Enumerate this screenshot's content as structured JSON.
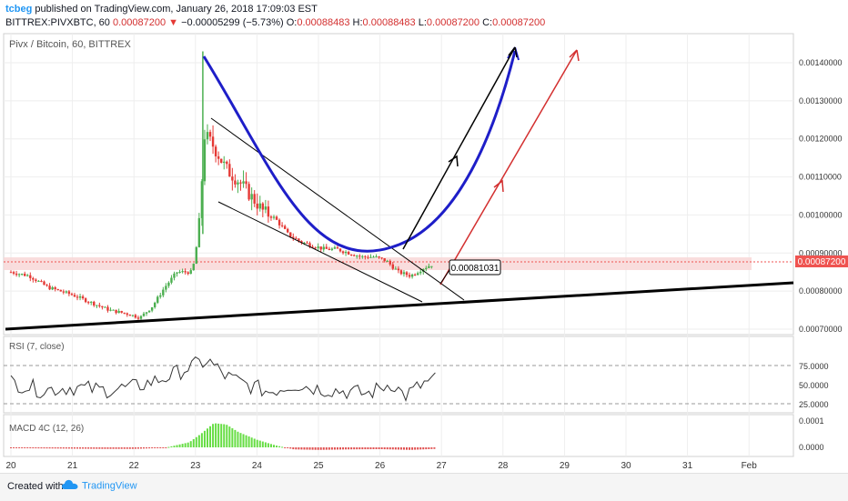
{
  "header": {
    "author": "tcbeg",
    "published_text": "published on TradingView.com, January 26, 2018 17:09:03 EST",
    "symbol": "BITTREX:PIVXBTC, 60",
    "last_price": "0.00087200",
    "change": "−0.00005299 (−5.73%)",
    "open_label": "O:",
    "open": "0.00088483",
    "high_label": "H:",
    "high": "0.00088483",
    "low_label": "L:",
    "low": "0.00087200",
    "close_label": "C:",
    "close": "0.00087200"
  },
  "chart_title": "Pivx / Bitcoin, 60, BITTREX",
  "price_axis_labels": [
    "0.00140000",
    "0.00130000",
    "0.00120000",
    "0.00110000",
    "0.00100000",
    "0.00090000",
    "0.00080000",
    "0.00070000"
  ],
  "current_price_tag": "0.00087200",
  "annotation_price": "0.00081031",
  "time_axis_labels": [
    "20",
    "21",
    "22",
    "23",
    "24",
    "25",
    "26",
    "27",
    "28",
    "29",
    "30",
    "31",
    "Feb"
  ],
  "rsi": {
    "title": "RSI (7, close)",
    "axis_labels": [
      "75.0000",
      "50.0000",
      "25.0000"
    ]
  },
  "macd": {
    "title": "MACD 4C (12, 26)",
    "axis_labels": [
      "0.0001",
      "0.0000"
    ]
  },
  "footer": {
    "created_with": "Created with",
    "brand": "TradingView"
  },
  "colors": {
    "up": "#26a69a",
    "down": "#ef5350",
    "green_candle": "#4caf50",
    "red_candle": "#e53935",
    "blue_curve": "#1e1ec8",
    "support_zone": "#f8d7d7",
    "price_tag": "#ef5350"
  },
  "chart_data": {
    "type": "candlestick",
    "title": "Pivx / Bitcoin, 60, BITTREX",
    "x_axis": [
      "20",
      "21",
      "22",
      "23",
      "24",
      "25",
      "26",
      "27",
      "28",
      "29",
      "30",
      "31",
      "Feb"
    ],
    "ylim": [
      0.00066,
      0.00146
    ],
    "price_path": [
      [
        20.0,
        0.00085
      ],
      [
        20.3,
        0.00084
      ],
      [
        20.6,
        0.00081
      ],
      [
        21.0,
        0.00079
      ],
      [
        21.3,
        0.00077
      ],
      [
        21.6,
        0.00075
      ],
      [
        21.9,
        0.00074
      ],
      [
        22.1,
        0.00073
      ],
      [
        22.3,
        0.00076
      ],
      [
        22.5,
        0.00081
      ],
      [
        22.7,
        0.00085
      ],
      [
        22.95,
        0.00085
      ],
      [
        23.05,
        0.00095
      ],
      [
        23.15,
        0.00121
      ],
      [
        23.3,
        0.00118
      ],
      [
        23.5,
        0.00112
      ],
      [
        23.7,
        0.00109
      ],
      [
        23.9,
        0.00105
      ],
      [
        24.1,
        0.00101
      ],
      [
        24.3,
        0.00099
      ],
      [
        24.5,
        0.00095
      ],
      [
        24.7,
        0.00093
      ],
      [
        24.9,
        0.00092
      ],
      [
        25.1,
        0.00091
      ],
      [
        25.3,
        0.00091
      ],
      [
        25.5,
        0.0009
      ],
      [
        25.7,
        0.00089
      ],
      [
        25.9,
        0.00089
      ],
      [
        26.1,
        0.00088
      ],
      [
        26.3,
        0.00085
      ],
      [
        26.5,
        0.00084
      ],
      [
        26.7,
        0.00086
      ],
      [
        26.85,
        0.00087
      ]
    ],
    "rsi_path": [
      [
        20.0,
        55
      ],
      [
        20.5,
        44
      ],
      [
        21.0,
        48
      ],
      [
        21.5,
        44
      ],
      [
        22.0,
        48
      ],
      [
        22.5,
        60
      ],
      [
        22.9,
        74
      ],
      [
        23.2,
        83
      ],
      [
        23.5,
        62
      ],
      [
        23.8,
        52
      ],
      [
        24.2,
        42
      ],
      [
        24.6,
        52
      ],
      [
        25.0,
        46
      ],
      [
        25.4,
        43
      ],
      [
        25.8,
        39
      ],
      [
        26.2,
        54
      ],
      [
        26.4,
        36
      ],
      [
        26.7,
        52
      ],
      [
        26.9,
        58
      ]
    ],
    "macd_hist": [
      [
        20.0,
        -3e-06
      ],
      [
        20.5,
        -4e-06
      ],
      [
        21.0,
        -5e-06
      ],
      [
        21.5,
        -6e-06
      ],
      [
        22.0,
        -6e-06
      ],
      [
        22.5,
        -2e-06
      ],
      [
        22.9,
        2e-05
      ],
      [
        23.1,
        5.5e-05
      ],
      [
        23.3,
        9.5e-05
      ],
      [
        23.5,
        9e-05
      ],
      [
        23.7,
        6e-05
      ],
      [
        24.0,
        3e-05
      ],
      [
        24.3,
        8e-06
      ],
      [
        24.6,
        -8e-06
      ],
      [
        25.0,
        -1e-05
      ],
      [
        25.5,
        -8e-06
      ],
      [
        26.0,
        -7e-06
      ],
      [
        26.5,
        -1e-05
      ],
      [
        26.9,
        -6e-06
      ]
    ],
    "rsi_levels": [
      70,
      30
    ]
  }
}
